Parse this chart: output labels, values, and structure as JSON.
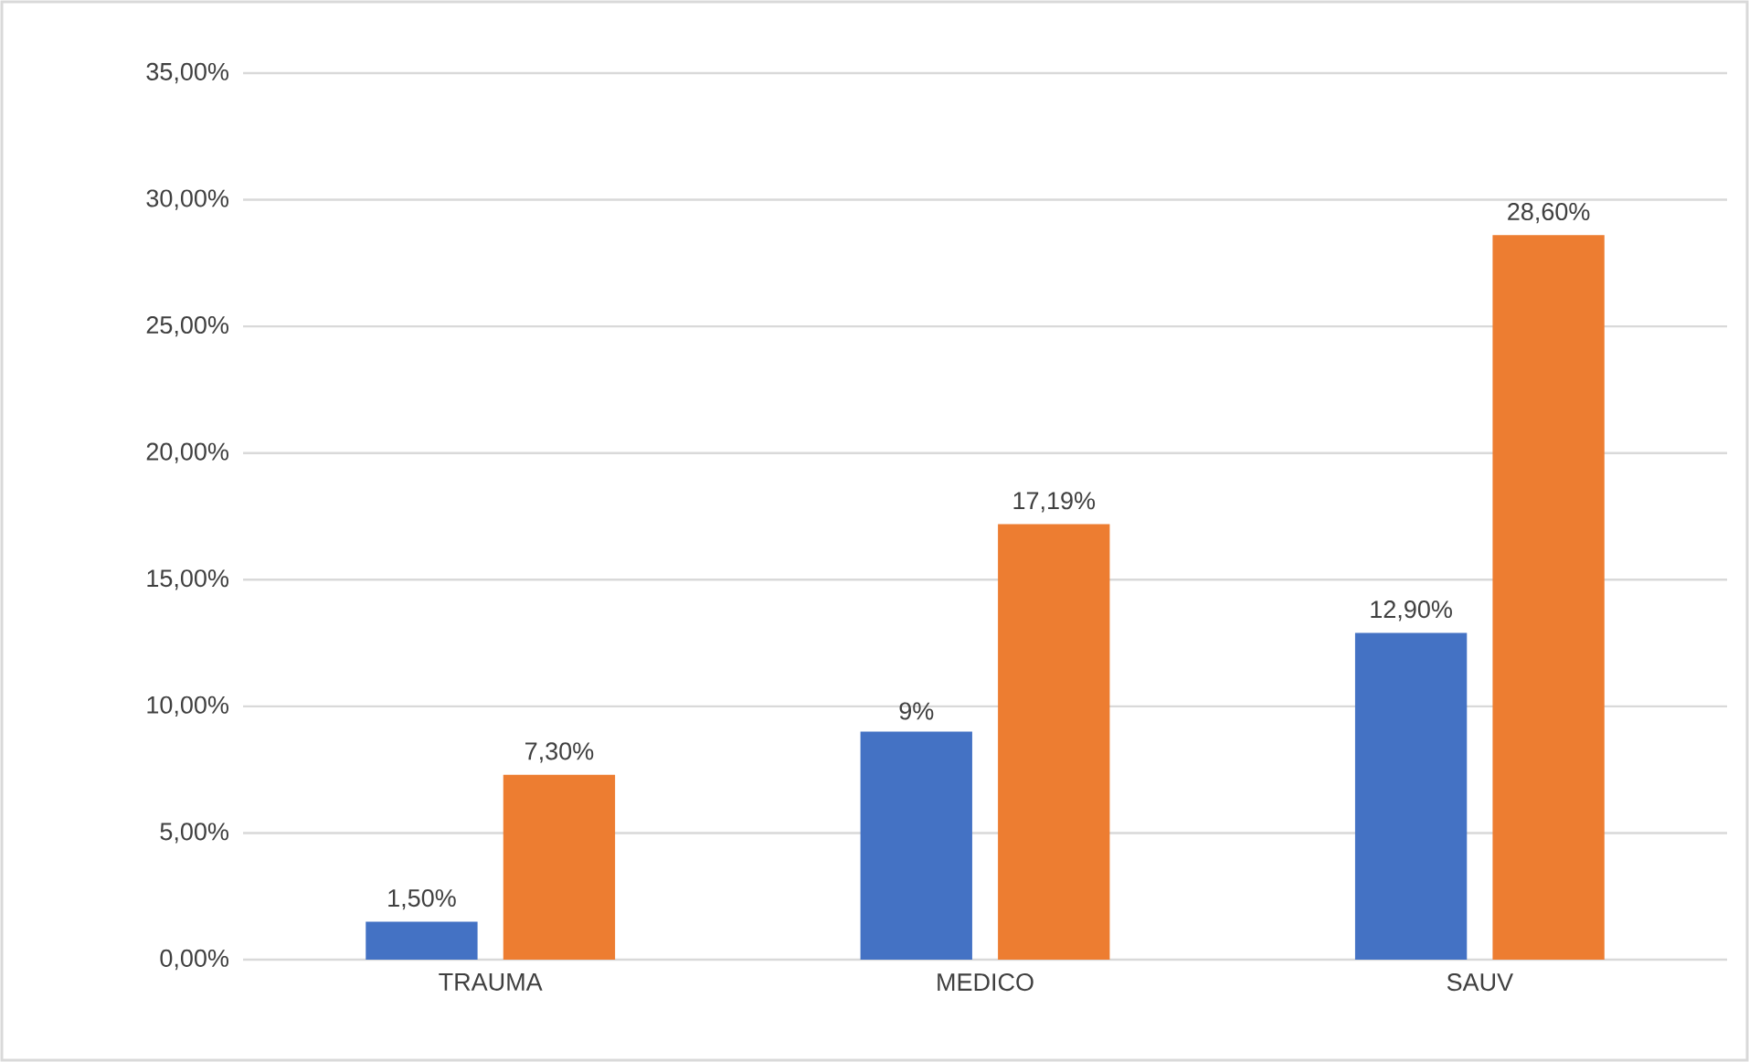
{
  "chart_data": {
    "type": "bar",
    "categories": [
      "TRAUMA",
      "MEDICO",
      "SAUV"
    ],
    "series": [
      {
        "color": "#4472c4",
        "values": [
          1.5,
          9,
          12.9
        ],
        "value_labels": [
          "1,50%",
          "9%",
          "12,90%"
        ]
      },
      {
        "color": "#ed7d31",
        "values": [
          7.3,
          17.19,
          28.6
        ],
        "value_labels": [
          "7,30%",
          "17,19%",
          "28,60%"
        ]
      }
    ],
    "ylim": [
      0,
      35
    ],
    "yticks": [
      {
        "value": 0,
        "label": "0,00%"
      },
      {
        "value": 5,
        "label": "5,00%"
      },
      {
        "value": 10,
        "label": "10,00%"
      },
      {
        "value": 15,
        "label": "15,00%"
      },
      {
        "value": 20,
        "label": "20,00%"
      },
      {
        "value": 25,
        "label": "25,00%"
      },
      {
        "value": 30,
        "label": "30,00%"
      },
      {
        "value": 35,
        "label": "35,00%"
      }
    ],
    "grid": "y"
  }
}
